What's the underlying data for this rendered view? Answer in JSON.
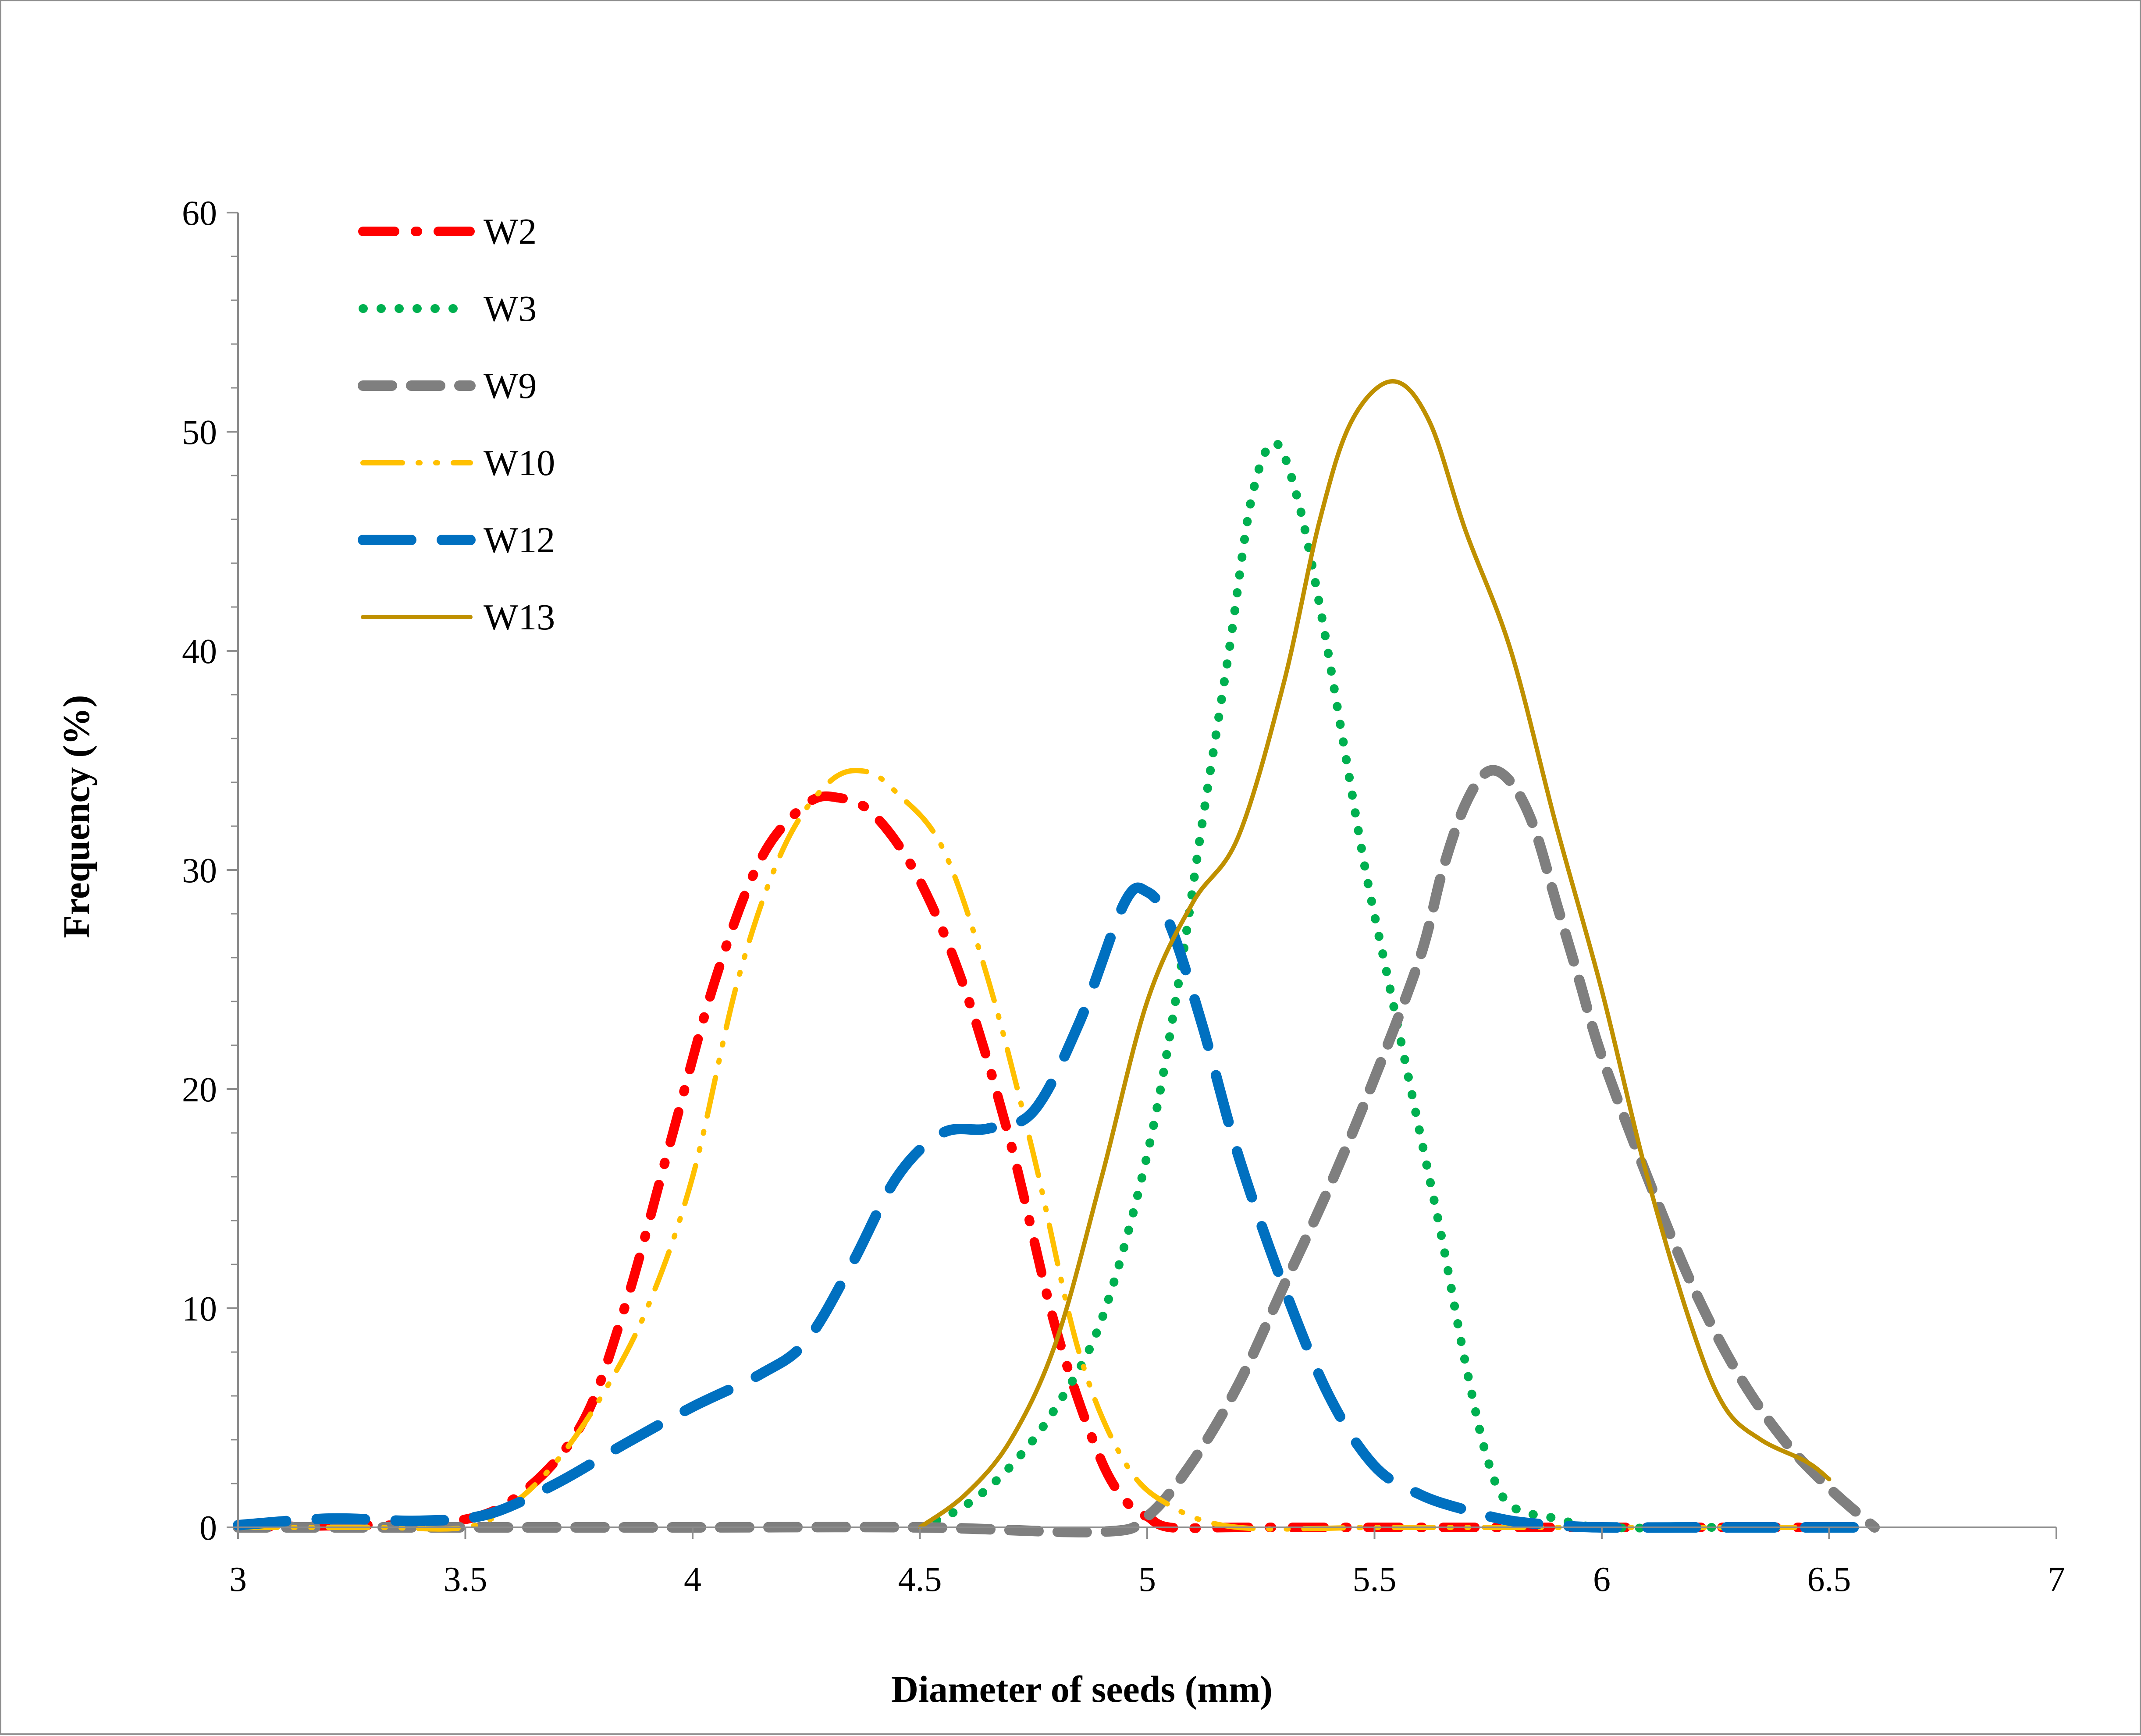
{
  "chart_data": {
    "type": "line",
    "title": "",
    "xlabel": "Diameter of seeds (mm)",
    "ylabel": "Frequency (%)",
    "xlim": [
      3,
      7
    ],
    "ylim": [
      0,
      60
    ],
    "xticks": [
      "3",
      "3.5",
      "4",
      "4.5",
      "5",
      "5.5",
      "6",
      "6.5",
      "7"
    ],
    "yticks": [
      "0",
      "10",
      "20",
      "30",
      "40",
      "50",
      "60"
    ],
    "y_minor_ticks_per_major": 5,
    "grid": false,
    "legend_position": "top-left",
    "series": [
      {
        "name": "W2",
        "color": "#ff0000",
        "style": "dash-dot",
        "points": [
          [
            3.0,
            0
          ],
          [
            3.25,
            0.1
          ],
          [
            3.45,
            0.2
          ],
          [
            3.6,
            1.2
          ],
          [
            3.75,
            4.5
          ],
          [
            3.85,
            10
          ],
          [
            3.95,
            17.5
          ],
          [
            4.05,
            25
          ],
          [
            4.15,
            30.5
          ],
          [
            4.25,
            33
          ],
          [
            4.32,
            33.3
          ],
          [
            4.4,
            32.5
          ],
          [
            4.5,
            29.5
          ],
          [
            4.6,
            24.5
          ],
          [
            4.7,
            17.5
          ],
          [
            4.8,
            9
          ],
          [
            4.9,
            3
          ],
          [
            4.97,
            0.8
          ],
          [
            5.0,
            0.5
          ],
          [
            5.05,
            0
          ],
          [
            5.2,
            0
          ],
          [
            5.5,
            0
          ],
          [
            5.75,
            0
          ],
          [
            6.0,
            0
          ],
          [
            6.25,
            0
          ],
          [
            6.5,
            0
          ]
        ]
      },
      {
        "name": "W3",
        "color": "#00b050",
        "style": "dotted",
        "points": [
          [
            4.5,
            0
          ],
          [
            4.6,
            1
          ],
          [
            4.7,
            2.8
          ],
          [
            4.8,
            5.5
          ],
          [
            4.9,
            9.5
          ],
          [
            5.0,
            17
          ],
          [
            5.07,
            25
          ],
          [
            5.12,
            32
          ],
          [
            5.18,
            40
          ],
          [
            5.23,
            47
          ],
          [
            5.28,
            49.5
          ],
          [
            5.33,
            47
          ],
          [
            5.38,
            42
          ],
          [
            5.43,
            36
          ],
          [
            5.48,
            30
          ],
          [
            5.53,
            25
          ],
          [
            5.6,
            18
          ],
          [
            5.65,
            13
          ],
          [
            5.7,
            7.5
          ],
          [
            5.75,
            3
          ],
          [
            5.8,
            1
          ],
          [
            5.9,
            0.4
          ],
          [
            6.0,
            0
          ],
          [
            6.25,
            0
          ]
        ]
      },
      {
        "name": "W9",
        "color": "#7f7f7f",
        "style": "dashed",
        "points": [
          [
            3.0,
            0
          ],
          [
            3.5,
            0
          ],
          [
            4.0,
            0
          ],
          [
            4.5,
            0
          ],
          [
            4.9,
            -0.2
          ],
          [
            5.0,
            0.5
          ],
          [
            5.1,
            3
          ],
          [
            5.2,
            6.5
          ],
          [
            5.3,
            11
          ],
          [
            5.4,
            15.5
          ],
          [
            5.5,
            20.5
          ],
          [
            5.6,
            26
          ],
          [
            5.65,
            30
          ],
          [
            5.7,
            33
          ],
          [
            5.75,
            34.5
          ],
          [
            5.8,
            34
          ],
          [
            5.85,
            32
          ],
          [
            5.9,
            28.5
          ],
          [
            5.95,
            25
          ],
          [
            6.0,
            21.5
          ],
          [
            6.1,
            16
          ],
          [
            6.2,
            11
          ],
          [
            6.3,
            7
          ],
          [
            6.4,
            4
          ],
          [
            6.5,
            1.8
          ],
          [
            6.6,
            0
          ]
        ]
      },
      {
        "name": "W10",
        "color": "#ffc000",
        "style": "dash-dot-dot",
        "points": [
          [
            3.0,
            0
          ],
          [
            3.3,
            0
          ],
          [
            3.5,
            0
          ],
          [
            3.6,
            1
          ],
          [
            3.7,
            3
          ],
          [
            3.8,
            6
          ],
          [
            3.9,
            10
          ],
          [
            4.0,
            16
          ],
          [
            4.1,
            25
          ],
          [
            4.2,
            31
          ],
          [
            4.3,
            34
          ],
          [
            4.38,
            34.5
          ],
          [
            4.45,
            33.5
          ],
          [
            4.55,
            31
          ],
          [
            4.65,
            25
          ],
          [
            4.75,
            17
          ],
          [
            4.85,
            8
          ],
          [
            4.95,
            3
          ],
          [
            5.05,
            1
          ],
          [
            5.2,
            0
          ],
          [
            5.5,
            0
          ],
          [
            5.7,
            0
          ],
          [
            6.0,
            0
          ],
          [
            6.25,
            0
          ],
          [
            6.5,
            0
          ]
        ]
      },
      {
        "name": "W12",
        "color": "#0070c0",
        "style": "long-dash",
        "points": [
          [
            3.0,
            0.1
          ],
          [
            3.2,
            0.4
          ],
          [
            3.4,
            0.3
          ],
          [
            3.55,
            0.6
          ],
          [
            3.7,
            2
          ],
          [
            3.85,
            3.8
          ],
          [
            4.0,
            5.5
          ],
          [
            4.15,
            7
          ],
          [
            4.25,
            8.5
          ],
          [
            4.35,
            12
          ],
          [
            4.45,
            16
          ],
          [
            4.55,
            18
          ],
          [
            4.65,
            18.2
          ],
          [
            4.75,
            19
          ],
          [
            4.85,
            23
          ],
          [
            4.95,
            28.5
          ],
          [
            5.0,
            29
          ],
          [
            5.05,
            27.5
          ],
          [
            5.12,
            23
          ],
          [
            5.2,
            17
          ],
          [
            5.3,
            11
          ],
          [
            5.4,
            6
          ],
          [
            5.5,
            2.8
          ],
          [
            5.6,
            1.5
          ],
          [
            5.7,
            0.8
          ],
          [
            5.8,
            0.3
          ],
          [
            5.9,
            0.1
          ],
          [
            6.0,
            0
          ],
          [
            6.25,
            0
          ],
          [
            6.5,
            0
          ],
          [
            6.6,
            0
          ]
        ]
      },
      {
        "name": "W13",
        "color": "#bf9000",
        "style": "solid",
        "points": [
          [
            4.5,
            0
          ],
          [
            4.6,
            1.5
          ],
          [
            4.7,
            4
          ],
          [
            4.8,
            8.5
          ],
          [
            4.9,
            16
          ],
          [
            5.0,
            24
          ],
          [
            5.1,
            28.5
          ],
          [
            5.2,
            31.5
          ],
          [
            5.3,
            38.5
          ],
          [
            5.38,
            46
          ],
          [
            5.45,
            50.5
          ],
          [
            5.54,
            52.3
          ],
          [
            5.62,
            50.5
          ],
          [
            5.7,
            45.5
          ],
          [
            5.8,
            40
          ],
          [
            5.9,
            32
          ],
          [
            6.0,
            24.5
          ],
          [
            6.1,
            16
          ],
          [
            6.2,
            9
          ],
          [
            6.27,
            5.5
          ],
          [
            6.35,
            4
          ],
          [
            6.45,
            3
          ],
          [
            6.5,
            2.2
          ]
        ]
      }
    ]
  }
}
